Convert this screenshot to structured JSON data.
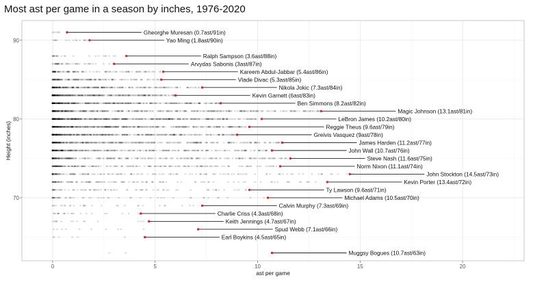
{
  "chart_data": {
    "type": "scatter",
    "title": "Most ast per game in a season by inches, 1976-2020",
    "xlabel": "ast per game",
    "ylabel": "Height (inches)",
    "xlim": [
      -1.5,
      23
    ],
    "ylim": [
      62,
      92.5
    ],
    "xticks": [
      0,
      5,
      10,
      15,
      20
    ],
    "yticks": [
      70,
      80,
      90
    ],
    "grid": true,
    "background_points": {
      "note_color": "#000000",
      "counts_by_height": {
        "91": 6,
        "90": 15,
        "88": 25,
        "87": 45,
        "86": 110,
        "85": 140,
        "84": 250,
        "83": 330,
        "82": 360,
        "81": 400,
        "80": 430,
        "79": 420,
        "78": 380,
        "77": 350,
        "76": 300,
        "75": 250,
        "74": 200,
        "73": 160,
        "72": 120,
        "71": 80,
        "70": 50,
        "69": 30,
        "68": 22,
        "67": 15,
        "66": 10,
        "65": 6,
        "63": 2
      }
    },
    "highlight_color": "#d62728",
    "leaders": [
      {
        "label": "Gheorghe Muresan (0.7ast/91in)",
        "x": 0.7,
        "y": 91
      },
      {
        "label": "Yao Ming (1.8ast/90in)",
        "x": 1.8,
        "y": 90
      },
      {
        "label": "Ralph Sampson (3.6ast/88in)",
        "x": 3.6,
        "y": 88
      },
      {
        "label": "Arvydas Sabonis (3ast/87in)",
        "x": 3.0,
        "y": 87
      },
      {
        "label": "Kareem Abdul-Jabbar (5.4ast/86in)",
        "x": 5.4,
        "y": 86
      },
      {
        "label": "Vlade Divac (5.3ast/85in)",
        "x": 5.3,
        "y": 85
      },
      {
        "label": "Nikola Jokic (7.3ast/84in)",
        "x": 7.3,
        "y": 84
      },
      {
        "label": "Kevin Garnett (6ast/83in)",
        "x": 6.0,
        "y": 83
      },
      {
        "label": "Ben Simmons (8.2ast/82in)",
        "x": 8.2,
        "y": 82
      },
      {
        "label": "Magic Johnson (13.1ast/81in)",
        "x": 13.1,
        "y": 81
      },
      {
        "label": "LeBron James (10.2ast/80in)",
        "x": 10.2,
        "y": 80
      },
      {
        "label": "Reggie Theus (9.6ast/79in)",
        "x": 9.6,
        "y": 79
      },
      {
        "label": "Greivis Vasquez (9ast/78in)",
        "x": 9.0,
        "y": 78
      },
      {
        "label": "James Harden (11.2ast/77in)",
        "x": 11.2,
        "y": 77
      },
      {
        "label": "John Wall (10.7ast/76in)",
        "x": 10.7,
        "y": 76
      },
      {
        "label": "Steve Nash (11.6ast/75in)",
        "x": 11.6,
        "y": 75
      },
      {
        "label": "Norm Nixon (11.1ast/74in)",
        "x": 11.1,
        "y": 74
      },
      {
        "label": "John Stockton (14.5ast/73in)",
        "x": 14.5,
        "y": 73
      },
      {
        "label": "Kevin Porter (13.4ast/72in)",
        "x": 13.4,
        "y": 72
      },
      {
        "label": "Ty Lawson (9.6ast/71in)",
        "x": 9.6,
        "y": 71
      },
      {
        "label": "Michael Adams (10.5ast/70in)",
        "x": 10.5,
        "y": 70
      },
      {
        "label": "Calvin Murphy (7.3ast/69in)",
        "x": 7.3,
        "y": 69
      },
      {
        "label": "Charlie Criss (4.3ast/68in)",
        "x": 4.3,
        "y": 68
      },
      {
        "label": "Keith Jennings (4.7ast/67in)",
        "x": 4.7,
        "y": 67
      },
      {
        "label": "Spud Webb (7.1ast/66in)",
        "x": 7.1,
        "y": 66
      },
      {
        "label": "Earl Boykins (4.5ast/65in)",
        "x": 4.5,
        "y": 65
      },
      {
        "label": "Muggsy Bogues (10.7ast/63in)",
        "x": 10.7,
        "y": 63
      }
    ]
  }
}
